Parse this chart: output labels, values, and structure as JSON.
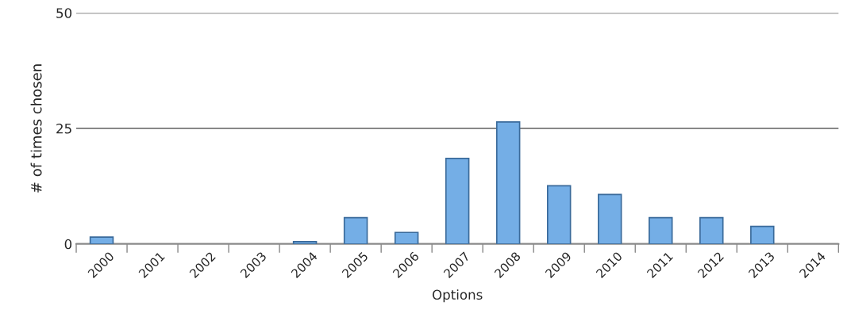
{
  "chart_data": {
    "type": "bar",
    "xlabel": "Options",
    "ylabel": "# of times chosen",
    "categories": [
      "2000",
      "2001",
      "2002",
      "2003",
      "2004",
      "2005",
      "2006",
      "2007",
      "2008",
      "2009",
      "2010",
      "2011",
      "2012",
      "2013",
      "2014"
    ],
    "values": [
      1.5,
      0,
      0,
      0,
      0.5,
      5.7,
      2.5,
      18.5,
      26.4,
      12.6,
      10.7,
      5.7,
      5.7,
      3.8,
      0
    ],
    "color": "#74aee6",
    "ylim": [
      0,
      50
    ],
    "yticks": [
      0,
      25,
      50
    ],
    "grid": "y",
    "legend": false
  }
}
